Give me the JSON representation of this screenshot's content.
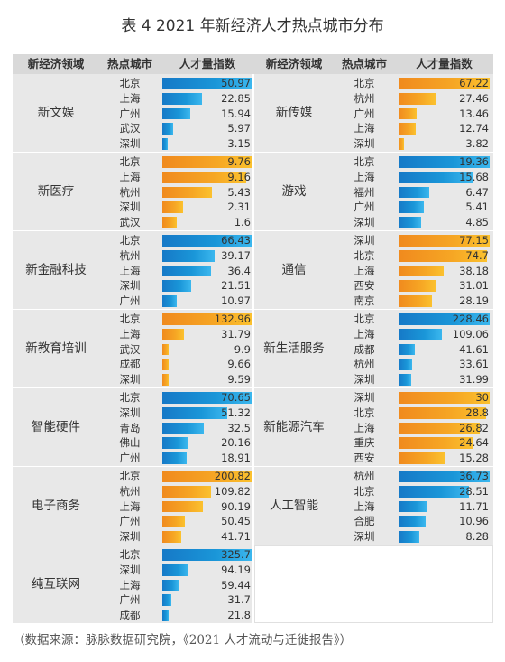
{
  "title": "表 4  2021 年新经济人才热点城市分布",
  "headers": [
    "新经济领域",
    "热点城市",
    "人才量指数",
    "新经济领域",
    "热点城市",
    "人才量指数"
  ],
  "source": "（数据来源：脉脉数据研究院，《2021 人才流动与迁徙报告》）",
  "colors": {
    "blue": "#1a8fd6",
    "orange": "#f5a623",
    "cell_bg": "#e8e8e8",
    "header_bg": "#d9d9d9"
  },
  "chart_data": {
    "type": "table",
    "column_headers": [
      "新经济领域",
      "热点城市",
      "人才量指数"
    ],
    "left": [
      {
        "field": "新文娱",
        "color": "blue",
        "scale_max": 50.97,
        "rows": [
          {
            "city": "北京",
            "value": 50.97
          },
          {
            "city": "上海",
            "value": 22.85
          },
          {
            "city": "广州",
            "value": 15.94
          },
          {
            "city": "武汉",
            "value": 5.97
          },
          {
            "city": "深圳",
            "value": 3.15
          }
        ]
      },
      {
        "field": "新医疗",
        "color": "orange",
        "scale_max": 9.76,
        "rows": [
          {
            "city": "北京",
            "value": 9.76
          },
          {
            "city": "上海",
            "value": 9.16
          },
          {
            "city": "杭州",
            "value": 5.43
          },
          {
            "city": "深圳",
            "value": 2.31
          },
          {
            "city": "武汉",
            "value": 1.6
          }
        ]
      },
      {
        "field": "新金融科技",
        "color": "blue",
        "scale_max": 66.43,
        "rows": [
          {
            "city": "北京",
            "value": 66.43
          },
          {
            "city": "杭州",
            "value": 39.17
          },
          {
            "city": "上海",
            "value": 36.4
          },
          {
            "city": "深圳",
            "value": 21.51
          },
          {
            "city": "广州",
            "value": 10.97
          }
        ]
      },
      {
        "field": "新教育培训",
        "color": "orange",
        "scale_max": 132.96,
        "rows": [
          {
            "city": "北京",
            "value": 132.96
          },
          {
            "city": "上海",
            "value": 31.79
          },
          {
            "city": "武汉",
            "value": 9.9
          },
          {
            "city": "成都",
            "value": 9.66
          },
          {
            "city": "深圳",
            "value": 9.59
          }
        ]
      },
      {
        "field": "智能硬件",
        "color": "blue",
        "scale_max": 70.65,
        "rows": [
          {
            "city": "北京",
            "value": 70.65
          },
          {
            "city": "深圳",
            "value": 51.32
          },
          {
            "city": "青岛",
            "value": 32.5
          },
          {
            "city": "佛山",
            "value": 20.16
          },
          {
            "city": "广州",
            "value": 18.91
          }
        ]
      },
      {
        "field": "电子商务",
        "color": "orange",
        "scale_max": 200.82,
        "rows": [
          {
            "city": "北京",
            "value": 200.82
          },
          {
            "city": "杭州",
            "value": 109.82
          },
          {
            "city": "上海",
            "value": 90.19
          },
          {
            "city": "广州",
            "value": 50.45
          },
          {
            "city": "深圳",
            "value": 41.71
          }
        ]
      },
      {
        "field": "纯互联网",
        "color": "blue",
        "scale_max": 325.7,
        "rows": [
          {
            "city": "北京",
            "value": 325.7
          },
          {
            "city": "深圳",
            "value": 94.19
          },
          {
            "city": "上海",
            "value": 59.44
          },
          {
            "city": "广州",
            "value": 31.7
          },
          {
            "city": "成都",
            "value": 21.8
          }
        ]
      }
    ],
    "right": [
      {
        "field": "新传媒",
        "color": "orange",
        "scale_max": 67.22,
        "rows": [
          {
            "city": "北京",
            "value": 67.22
          },
          {
            "city": "杭州",
            "value": 27.46
          },
          {
            "city": "广州",
            "value": 13.46
          },
          {
            "city": "上海",
            "value": 12.74
          },
          {
            "city": "深圳",
            "value": 3.82
          }
        ]
      },
      {
        "field": "游戏",
        "color": "blue",
        "scale_max": 19.36,
        "rows": [
          {
            "city": "北京",
            "value": 19.36
          },
          {
            "city": "上海",
            "value": 15.68
          },
          {
            "city": "福州",
            "value": 6.47
          },
          {
            "city": "广州",
            "value": 5.41
          },
          {
            "city": "深圳",
            "value": 4.85
          }
        ]
      },
      {
        "field": "通信",
        "color": "orange",
        "scale_max": 77.15,
        "rows": [
          {
            "city": "深圳",
            "value": 77.15
          },
          {
            "city": "北京",
            "value": 74.7
          },
          {
            "city": "上海",
            "value": 38.18
          },
          {
            "city": "西安",
            "value": 31.01
          },
          {
            "city": "南京",
            "value": 28.19
          }
        ]
      },
      {
        "field": "新生活服务",
        "color": "blue",
        "scale_max": 228.46,
        "rows": [
          {
            "city": "北京",
            "value": 228.46
          },
          {
            "city": "上海",
            "value": 109.06
          },
          {
            "city": "成都",
            "value": 41.61
          },
          {
            "city": "杭州",
            "value": 33.61
          },
          {
            "city": "深圳",
            "value": 31.99
          }
        ]
      },
      {
        "field": "新能源汽车",
        "color": "orange",
        "scale_max": 30,
        "rows": [
          {
            "city": "深圳",
            "value": 30
          },
          {
            "city": "北京",
            "value": 28.8
          },
          {
            "city": "上海",
            "value": 26.82
          },
          {
            "city": "重庆",
            "value": 24.64
          },
          {
            "city": "西安",
            "value": 15.28
          }
        ]
      },
      {
        "field": "人工智能",
        "color": "blue",
        "scale_max": 36.73,
        "rows": [
          {
            "city": "杭州",
            "value": 36.73
          },
          {
            "city": "北京",
            "value": 28.51
          },
          {
            "city": "上海",
            "value": 11.71
          },
          {
            "city": "合肥",
            "value": 10.96
          },
          {
            "city": "深圳",
            "value": 8.28
          }
        ]
      }
    ]
  }
}
